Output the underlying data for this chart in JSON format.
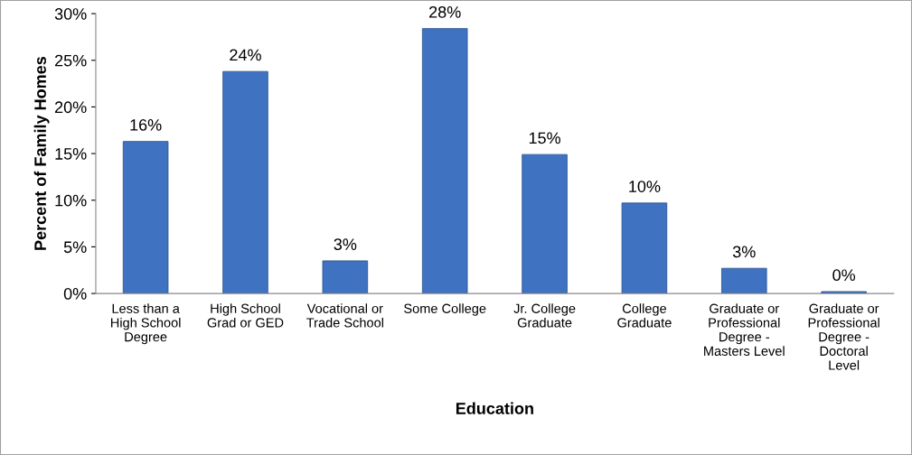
{
  "chart_data": {
    "type": "bar",
    "xlabel": "Education",
    "ylabel": "Percent of Family Homes",
    "categories": [
      "Less than a\nHigh School\nDegree",
      "High School\nGrad or GED",
      "Vocational or\nTrade School",
      "Some College",
      "Jr. College\nGraduate",
      "College\nGraduate",
      "Graduate or\nProfessional\nDegree -\nMasters Level",
      "Graduate or\nProfessional\nDegree -\nDoctoral\nLevel"
    ],
    "values": [
      16.3,
      23.8,
      3.5,
      28.4,
      14.9,
      9.7,
      2.7,
      0.2
    ],
    "value_labels": [
      "16%",
      "24%",
      "3%",
      "28%",
      "15%",
      "10%",
      "3%",
      "0%"
    ],
    "color": "#3f72c0",
    "ylim": [
      0,
      30
    ],
    "yticks": [
      {
        "value": 0,
        "label": "0%"
      },
      {
        "value": 5,
        "label": "5%"
      },
      {
        "value": 10,
        "label": "10%"
      },
      {
        "value": 15,
        "label": "15%"
      },
      {
        "value": 20,
        "label": "20%"
      },
      {
        "value": 25,
        "label": "25%"
      },
      {
        "value": 30,
        "label": "30%"
      }
    ],
    "grid": false,
    "legend": false
  }
}
